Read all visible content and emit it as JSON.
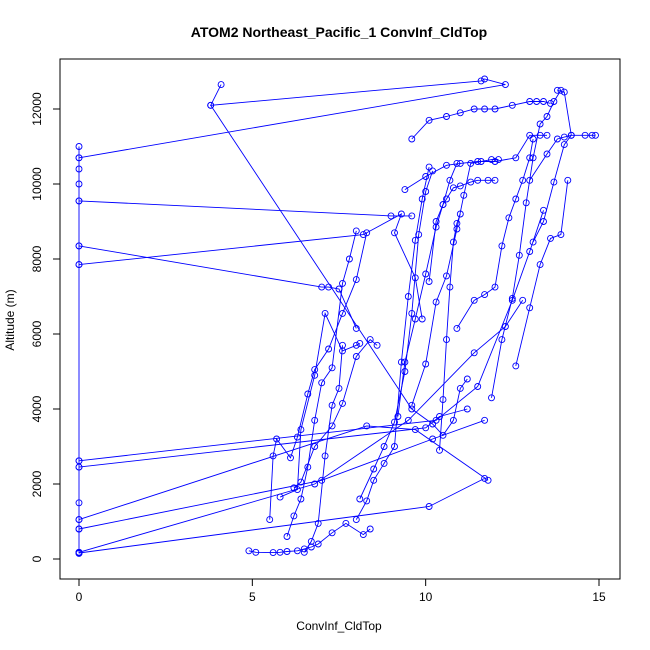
{
  "chart_data": {
    "type": "scatter",
    "title": "ATOM2 Northeast_Pacific_1 ConvInf_CldTop",
    "xlabel": "ConvInf_CldTop",
    "ylabel": "Altitude (m)",
    "xlim": [
      0,
      15
    ],
    "ylim": [
      0,
      12800
    ],
    "xticks": [
      0,
      5,
      10,
      15
    ],
    "yticks": [
      0,
      2000,
      4000,
      6000,
      8000,
      10000,
      12000
    ],
    "grid": false,
    "legend": "none",
    "series_color": "#0000ff",
    "series": [
      {
        "x": [
          0,
          0,
          0,
          0,
          0,
          0,
          0,
          0,
          0,
          0,
          0,
          0,
          0,
          0,
          0
        ],
        "y": [
          11000,
          10700,
          10400,
          10000,
          9550,
          8350,
          7850,
          2620,
          2450,
          1500,
          1050,
          800,
          180,
          150,
          160
        ]
      },
      {
        "x": [
          0,
          12.3,
          11.7,
          11.6,
          3.8,
          4.1
        ],
        "y": [
          10700,
          12650,
          12800,
          12750,
          12100,
          12650
        ]
      },
      {
        "x": [
          0,
          9.0,
          9.6
        ],
        "y": [
          9550,
          9150,
          9150
        ]
      },
      {
        "x": [
          0,
          7.0,
          7.2,
          7.5,
          8.0
        ],
        "y": [
          8350,
          7250,
          7250,
          7200,
          6150
        ]
      },
      {
        "x": [
          0,
          8.2,
          9.3,
          9.1,
          9.7,
          9.9
        ],
        "y": [
          7850,
          8650,
          9200,
          8700,
          7500,
          6400
        ]
      },
      {
        "x": [
          3.8,
          9.6,
          10.2,
          10.5,
          10.8,
          11.0,
          11.2
        ],
        "y": [
          12100,
          4000,
          3600,
          3300,
          3700,
          4550,
          4800
        ]
      },
      {
        "x": [
          0,
          10.3,
          11.5,
          12.5,
          13.0,
          13.4
        ],
        "y": [
          2620,
          3700,
          4600,
          6900,
          8200,
          9300
        ]
      },
      {
        "x": [
          0,
          10.0,
          10.4,
          11.2
        ],
        "y": [
          2450,
          3500,
          3800,
          4000
        ]
      },
      {
        "x": [
          0,
          8.3,
          9.7,
          11.8
        ],
        "y": [
          1050,
          3550,
          3450,
          2100
        ]
      },
      {
        "x": [
          0,
          6.8,
          9.5,
          11.4,
          12.3,
          12.8
        ],
        "y": [
          180,
          2000,
          3700,
          5500,
          6200,
          6900
        ]
      },
      {
        "x": [
          0,
          7.0,
          10.2,
          11.7
        ],
        "y": [
          800,
          2100,
          3200,
          3700
        ]
      },
      {
        "x": [
          0,
          10.1,
          11.7
        ],
        "y": [
          160,
          1400,
          2150
        ]
      },
      {
        "x": [
          4.9,
          5.1,
          5.6,
          5.8,
          6.0,
          6.3,
          6.5,
          6.7,
          6.9,
          7.3,
          7.7,
          8.2,
          8.4
        ],
        "y": [
          220,
          180,
          170,
          180,
          200,
          220,
          270,
          320,
          400,
          700,
          950,
          650,
          800
        ]
      },
      {
        "x": [
          5.5,
          5.6,
          5.7,
          6.1,
          6.3,
          6.6,
          6.8,
          7.2,
          7.6,
          8.0,
          8.3
        ],
        "y": [
          1050,
          2750,
          3200,
          2700,
          3250,
          4400,
          5050,
          5600,
          6550,
          7450,
          8700
        ]
      },
      {
        "x": [
          5.8,
          6.3,
          6.4,
          6.8,
          7.1,
          7.6,
          8.0,
          8.1
        ],
        "y": [
          1650,
          1850,
          3450,
          4900,
          6550,
          5550,
          5700,
          5750
        ]
      },
      {
        "x": [
          6.0,
          6.2,
          6.4,
          6.6,
          6.8,
          7.0,
          7.3,
          7.6,
          7.8,
          8.0
        ],
        "y": [
          600,
          1150,
          1600,
          2450,
          3700,
          4700,
          5100,
          7350,
          8000,
          8750
        ]
      },
      {
        "x": [
          6.2,
          6.4,
          6.8,
          7.3,
          7.6,
          8.0,
          8.4,
          8.6
        ],
        "y": [
          1900,
          2050,
          3000,
          3550,
          4150,
          5400,
          5850,
          5700
        ]
      },
      {
        "x": [
          6.5,
          6.7,
          6.9,
          7.1,
          7.3,
          7.5,
          7.6
        ],
        "y": [
          180,
          470,
          950,
          2750,
          4100,
          4550,
          5700
        ]
      },
      {
        "x": [
          8.0,
          8.3,
          8.5,
          8.8,
          9.1,
          9.3,
          9.5,
          9.7,
          9.9,
          10.1
        ],
        "y": [
          1050,
          1550,
          2100,
          2550,
          3000,
          5250,
          7000,
          8500,
          9600,
          10450
        ]
      },
      {
        "x": [
          8.1,
          8.5,
          8.8,
          9.1,
          9.4,
          9.6,
          9.8,
          10.0,
          10.2
        ],
        "y": [
          1600,
          2400,
          3000,
          3650,
          5000,
          6550,
          8650,
          9800,
          10350
        ]
      },
      {
        "x": [
          9.2,
          9.4,
          9.7,
          10.0,
          10.3,
          10.5,
          10.7,
          10.9
        ],
        "y": [
          3800,
          5250,
          6400,
          7600,
          8850,
          9450,
          10100,
          10550
        ]
      },
      {
        "x": [
          9.6,
          10.0,
          10.3,
          10.6,
          10.9,
          11.1,
          11.3,
          11.6,
          11.9,
          12.1
        ],
        "y": [
          4100,
          5200,
          6850,
          7550,
          8800,
          9700,
          10550,
          10600,
          10650,
          10650
        ]
      },
      {
        "x": [
          10.4,
          10.5,
          10.6,
          10.7,
          10.8,
          10.9,
          11.0
        ],
        "y": [
          2900,
          4250,
          5850,
          7250,
          8450,
          8950,
          9200
        ]
      },
      {
        "x": [
          10.1,
          10.3,
          10.5,
          10.6,
          10.8,
          11.0,
          11.3,
          11.5,
          11.8,
          12.0
        ],
        "y": [
          7400,
          9000,
          9450,
          9600,
          9900,
          9950,
          10050,
          10100,
          10100,
          10100
        ]
      },
      {
        "x": [
          10.9,
          11.4,
          11.7,
          12.0,
          12.2,
          12.4,
          12.6,
          12.8,
          13.0,
          13.1
        ],
        "y": [
          6150,
          6900,
          7050,
          7250,
          8350,
          9100,
          9600,
          10100,
          10700,
          11200
        ]
      },
      {
        "x": [
          11.9,
          12.2,
          12.5,
          12.7,
          12.9,
          13.1,
          13.3,
          13.5,
          13.7,
          13.9
        ],
        "y": [
          4300,
          5850,
          6950,
          8100,
          9500,
          10700,
          11600,
          11800,
          12200,
          12500
        ]
      },
      {
        "x": [
          9.4,
          10.0,
          10.6,
          11.0,
          11.5,
          12.0,
          12.6,
          13.0,
          13.3,
          13.5
        ],
        "y": [
          9850,
          10200,
          10500,
          10550,
          10600,
          10600,
          10700,
          11300,
          11300,
          11300
        ]
      },
      {
        "x": [
          9.6,
          10.1,
          10.6,
          11.0,
          11.4,
          11.7,
          12.0,
          12.5,
          13.0,
          13.2,
          13.4,
          13.6
        ],
        "y": [
          11200,
          11700,
          11800,
          11900,
          12000,
          12000,
          12000,
          12100,
          12200,
          12200,
          12200,
          12150
        ]
      },
      {
        "x": [
          13.0,
          13.5,
          13.8,
          14.0,
          14.2,
          14.6,
          14.8,
          14.9
        ],
        "y": [
          10100,
          10800,
          11200,
          11250,
          11300,
          11300,
          11300,
          11300
        ]
      },
      {
        "x": [
          12.6,
          13.0,
          13.3,
          13.6,
          13.9,
          14.1
        ],
        "y": [
          5150,
          6700,
          7850,
          8550,
          8650,
          10100
        ]
      },
      {
        "x": [
          13.1,
          13.4,
          13.7,
          14.0,
          14.2,
          14.0,
          13.8
        ],
        "y": [
          8450,
          9000,
          10050,
          11050,
          11300,
          12450,
          12500
        ]
      }
    ]
  }
}
